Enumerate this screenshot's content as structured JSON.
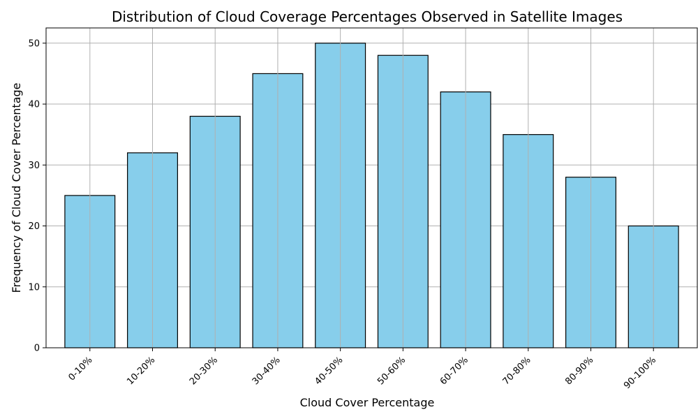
{
  "chart_data": {
    "type": "bar",
    "title": "Distribution of Cloud Coverage Percentages Observed in Satellite Images",
    "xlabel": "Cloud Cover Percentage",
    "ylabel": "Frequency of Cloud Cover Percentage",
    "categories": [
      "0-10%",
      "10-20%",
      "20-30%",
      "30-40%",
      "40-50%",
      "50-60%",
      "60-70%",
      "70-80%",
      "80-90%",
      "90-100%"
    ],
    "values": [
      25,
      32,
      38,
      45,
      50,
      48,
      42,
      35,
      28,
      20
    ],
    "ylim": [
      0,
      52.5
    ],
    "yticks": [
      0,
      10,
      20,
      30,
      40,
      50
    ],
    "grid": true,
    "colors": {
      "bar_fill": "#87ceeb",
      "bar_edge": "#000000",
      "grid": "#b0b0b0",
      "axis": "#000000"
    }
  }
}
